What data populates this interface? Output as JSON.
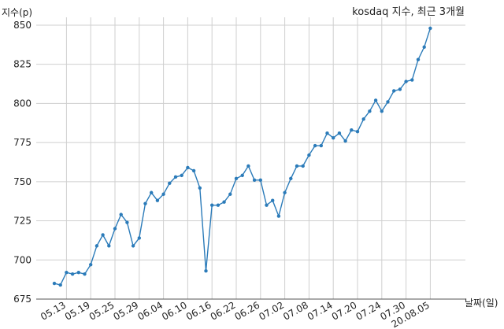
{
  "chart_data": {
    "type": "line",
    "title": "kosdaq 지수, 최근 3개월",
    "ylabel": "지수(p)",
    "xlabel": "날짜(일)",
    "ylim": [
      675,
      855
    ],
    "yticks": [
      675,
      700,
      725,
      750,
      775,
      800,
      825,
      850
    ],
    "grid": true,
    "line_color": "#2b7bb9",
    "xtick_labels": [
      "05.13",
      "05.19",
      "05.25",
      "05.29",
      "06.04",
      "06.10",
      "06.16",
      "06.22",
      "06.26",
      "07.02",
      "07.08",
      "07.14",
      "07.20",
      "07.24",
      "07.30",
      "20.08.05"
    ],
    "xtick_index": [
      2,
      6,
      10,
      14,
      18,
      22,
      26,
      30,
      34,
      38,
      42,
      46,
      50,
      54,
      58,
      62
    ],
    "values": [
      685,
      684,
      692,
      691,
      692,
      691,
      697,
      709,
      716,
      709,
      720,
      729,
      724,
      709,
      714,
      736,
      743,
      738,
      742,
      749,
      753,
      754,
      759,
      757,
      746,
      693,
      735,
      735,
      737,
      742,
      752,
      754,
      760,
      751,
      751,
      735,
      738,
      728,
      743,
      752,
      760,
      760,
      767,
      773,
      773,
      781,
      778,
      781,
      776,
      783,
      782,
      790,
      795,
      802,
      795,
      801,
      808,
      809,
      814,
      815,
      828,
      836,
      848
    ]
  }
}
